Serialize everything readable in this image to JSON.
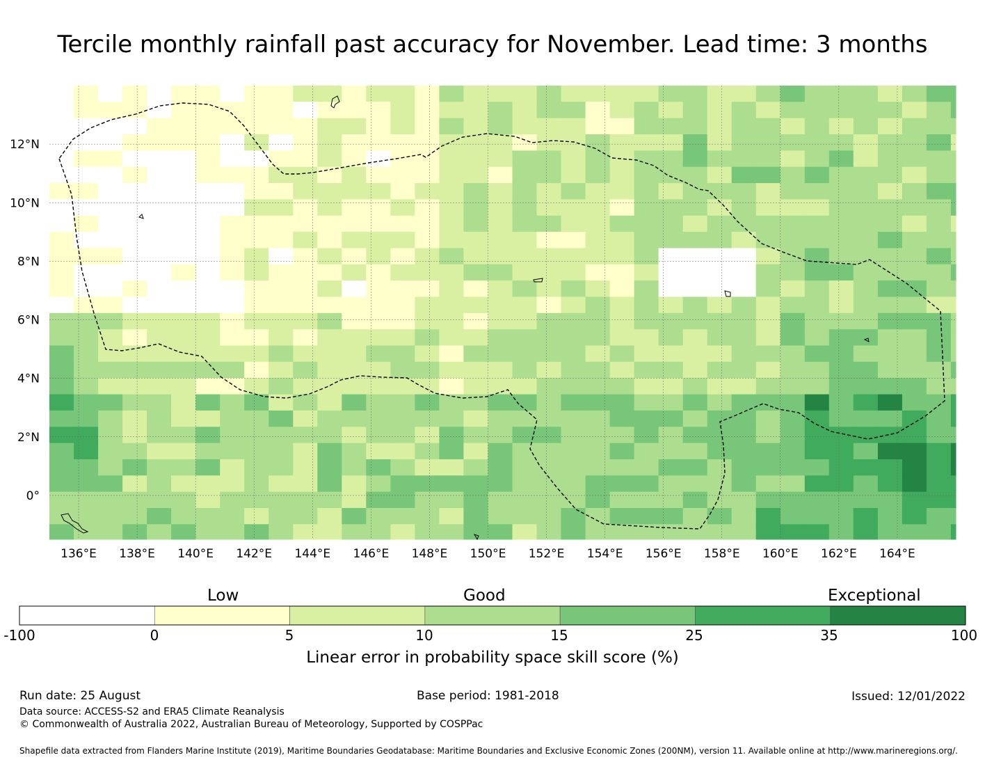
{
  "title": "Tercile monthly rainfall past accuracy for November. Lead time: 3 months",
  "map": {
    "lon_range": [
      135,
      166
    ],
    "lat_range": [
      -1.5,
      14
    ],
    "lon_ticks": [
      "136°E",
      "138°E",
      "140°E",
      "142°E",
      "144°E",
      "146°E",
      "148°E",
      "150°E",
      "152°E",
      "154°E",
      "156°E",
      "158°E",
      "160°E",
      "162°E",
      "164°E"
    ],
    "lat_ticks": [
      "12°N",
      "10°N",
      "8°N",
      "6°N",
      "4°N",
      "2°N",
      "0°"
    ],
    "boundary_line": "dashed"
  },
  "legend": {
    "categories": [
      "Low",
      "Good",
      "Exceptional"
    ],
    "ticks": [
      "-100",
      "0",
      "5",
      "10",
      "15",
      "25",
      "35",
      "100"
    ],
    "colors": [
      "#ffffff",
      "#ffffcc",
      "#d9f0a3",
      "#addd8e",
      "#78c679",
      "#41ab5d",
      "#238443"
    ],
    "label": "Linear error in probability space skill score (%)"
  },
  "footer": {
    "run_date": "Run date: 25 August",
    "base_period": "Base period: 1981-2018",
    "issued": "Issued: 12/01/2022",
    "data_source": "Data source: ACCESS-S2 and ERA5 Climate Reanalysis",
    "copyright": "© Commonwealth of Australia 2022, Australian Bureau of Meteorology, Supported by COSPPac",
    "shapefile": "Shapefile data extracted from Flanders Marine Institute (2019), Maritime Boundaries Geodatabase: Maritime Boundaries and Exclusive Economic Zones (200NM), version 11. Available online at http://www.marineregions.org/."
  }
}
